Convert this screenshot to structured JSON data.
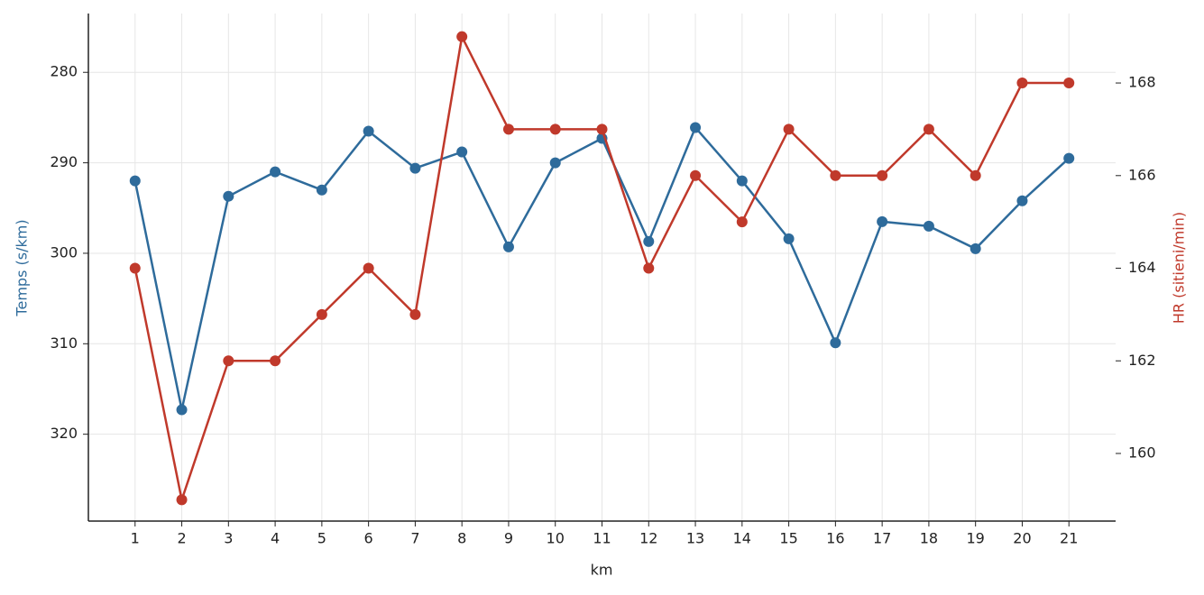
{
  "chart_data": {
    "type": "line",
    "x_label": "km",
    "y_label": "Temps (s/km)",
    "y2_label": "HR (sitieni/min)",
    "x": [
      1,
      2,
      3,
      4,
      5,
      6,
      7,
      8,
      9,
      10,
      11,
      12,
      13,
      14,
      15,
      16,
      17,
      18,
      19,
      20,
      21
    ],
    "xlim": [
      0,
      22
    ],
    "xticks": [
      1,
      2,
      3,
      4,
      5,
      6,
      7,
      8,
      9,
      10,
      11,
      12,
      13,
      14,
      15,
      16,
      17,
      18,
      19,
      20,
      21
    ],
    "ylim": [
      329.6,
      273.5
    ],
    "yticks": [
      280,
      290,
      300,
      310,
      320
    ],
    "y2lim": [
      158.54,
      169.5
    ],
    "y2ticks": [
      160,
      162,
      164,
      166,
      168
    ],
    "grid": true,
    "series": [
      {
        "name": "Temps (s/km)",
        "color": "#2e6b9b",
        "values": [
          292.0,
          317.3,
          293.7,
          291.0,
          293.0,
          286.5,
          290.6,
          288.8,
          299.3,
          290.0,
          287.3,
          298.7,
          286.1,
          292.0,
          298.4,
          309.9,
          296.5,
          297.0,
          299.5,
          294.2,
          289.5
        ]
      },
      {
        "name": "HR (sitieni/min)",
        "color": "#c0392b",
        "axis": "y2",
        "values": [
          164,
          159,
          162,
          162,
          163,
          164,
          163,
          169,
          167,
          167,
          167,
          164,
          166,
          165,
          167,
          166,
          166,
          167,
          166,
          168,
          168
        ]
      }
    ]
  }
}
